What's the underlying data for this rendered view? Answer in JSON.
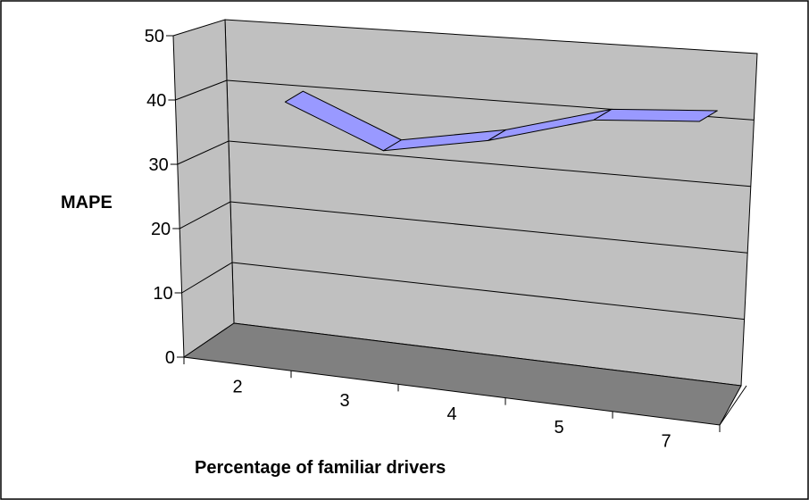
{
  "chart_data": {
    "type": "line",
    "style": "3d-ribbon",
    "categories": [
      "2",
      "3",
      "4",
      "5",
      "7"
    ],
    "series": [
      {
        "values": [
          38,
          31.5,
          34.5,
          39,
          40
        ],
        "color": "#9999ff"
      }
    ],
    "xlabel": "Percentage of familiar drivers",
    "ylabel": "MAPE",
    "ylim": [
      0,
      50
    ],
    "yticks": [
      0,
      10,
      20,
      30,
      40,
      50
    ],
    "grid": true,
    "legend": "none",
    "colors": {
      "wall": "#c0c0c0",
      "floor": "#808080",
      "ribbon": "#9999ff"
    }
  }
}
